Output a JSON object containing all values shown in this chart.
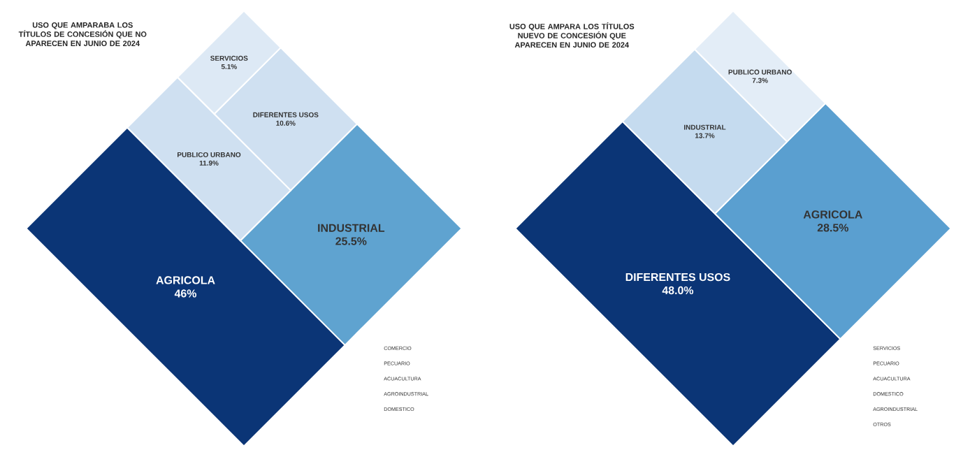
{
  "chart_data": [
    {
      "type": "other",
      "title": "USO QUE AMPARABA LOS TÍTULOS DE CONCESIÓN QUE NO APARECEN EN JUNIO DE 2024",
      "categories": [
        "AGRICOLA",
        "INDUSTRIAL",
        "PUBLICO URBANO",
        "DIFERENTES USOS",
        "SERVICIOS",
        "COMERCIO",
        "PECUARIO",
        "ACUACULTURA",
        "AGROINDUSTRIAL",
        "DOMESTICO"
      ],
      "values": [
        46,
        25.5,
        11.9,
        10.6,
        5.1,
        null,
        null,
        null,
        null,
        null
      ],
      "value_labels": [
        "46%",
        "25.5%",
        "11.9%",
        "10.6%",
        "5.1%",
        null,
        null,
        null,
        null,
        null
      ],
      "colors": [
        "#0b3576",
        "#5fa3d0",
        "#cfe0f1",
        "#cfe0f1",
        "#dde9f5",
        null,
        null,
        null,
        null,
        null
      ]
    },
    {
      "type": "other",
      "title": "USO QUE AMPARA LOS TÍTULOS NUEVO DE CONCESIÓN QUE APARECEN EN JUNIO DE 2024",
      "categories": [
        "DIFERENTES USOS",
        "AGRICOLA",
        "INDUSTRIAL",
        "PUBLICO URBANO",
        "SERVICIOS",
        "PECUARIO",
        "ACUACULTURA",
        "DOMESTICO",
        "AGROINDUSTRIAL",
        "OTROS"
      ],
      "values": [
        48.0,
        28.5,
        13.7,
        7.3,
        null,
        null,
        null,
        null,
        null,
        null
      ],
      "value_labels": [
        "48.0%",
        "28.5%",
        "13.7%",
        "7.3%",
        null,
        null,
        null,
        null,
        null,
        null
      ],
      "colors": [
        "#0b3576",
        "#5a9fd0",
        "#c5dbef",
        "#e3edf7",
        null,
        null,
        null,
        null,
        null,
        null
      ]
    }
  ]
}
